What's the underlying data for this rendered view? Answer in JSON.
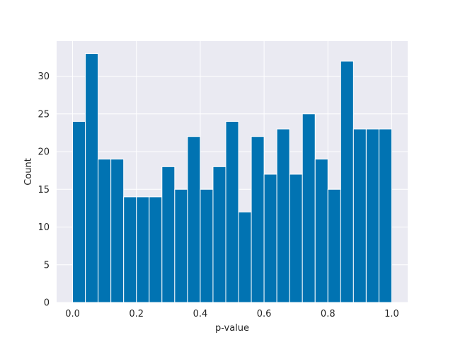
{
  "chart_data": {
    "type": "bar",
    "subtype": "histogram",
    "title": "",
    "xlabel": "p-value",
    "ylabel": "Count",
    "xlim": [
      -0.05,
      1.05
    ],
    "ylim": [
      0,
      34.65
    ],
    "bin_width": 0.04,
    "bin_start": 0.0,
    "values": [
      24,
      33,
      19,
      19,
      14,
      14,
      14,
      18,
      15,
      22,
      15,
      18,
      24,
      12,
      22,
      17,
      23,
      17,
      25,
      19,
      15,
      32,
      23,
      23,
      23
    ],
    "xticks": [
      0.0,
      0.2,
      0.4,
      0.6,
      0.8,
      1.0
    ],
    "xtick_labels": [
      "0.0",
      "0.2",
      "0.4",
      "0.6",
      "0.8",
      "1.0"
    ],
    "yticks": [
      0,
      5,
      10,
      15,
      20,
      25,
      30
    ],
    "ytick_labels": [
      "0",
      "5",
      "10",
      "15",
      "20",
      "25",
      "30"
    ],
    "grid": true,
    "colors": {
      "bar": "#0173b2",
      "background": "#eaeaf2",
      "grid": "#ffffff",
      "text": "#262626"
    }
  }
}
